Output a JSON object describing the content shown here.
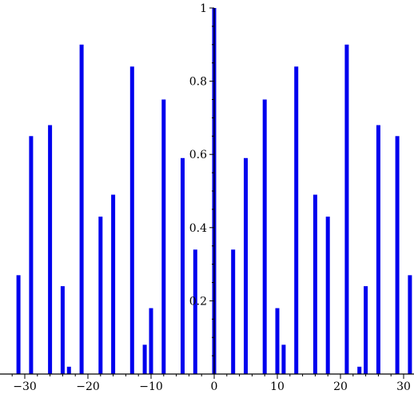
{
  "chart_data": {
    "type": "bar",
    "x": [
      -31,
      -29,
      -26,
      -24,
      -23,
      -21,
      -18,
      -16,
      -13,
      -11,
      -10,
      -8,
      -5,
      -3,
      0,
      3,
      5,
      8,
      10,
      11,
      13,
      16,
      18,
      21,
      23,
      24,
      26,
      29,
      31
    ],
    "values": [
      0.27,
      0.65,
      0.68,
      0.24,
      0.02,
      0.9,
      0.43,
      0.49,
      0.84,
      0.08,
      0.18,
      0.75,
      0.59,
      0.34,
      1.0,
      0.34,
      0.59,
      0.75,
      0.18,
      0.08,
      0.84,
      0.49,
      0.43,
      0.9,
      0.02,
      0.24,
      0.68,
      0.65,
      0.27
    ],
    "xlim": [
      -32,
      31
    ],
    "ylim": [
      0,
      1
    ],
    "x_ticks": [
      -30,
      -20,
      -10,
      0,
      10,
      20,
      30
    ],
    "x_tick_labels": [
      "−30",
      "−20",
      "−10",
      "0",
      "10",
      "20",
      "30"
    ],
    "y_ticks": [
      0.2,
      0.4,
      0.6,
      0.8,
      1
    ],
    "y_tick_labels": [
      "0.2",
      "0.4",
      "0.6",
      "0.8",
      "1"
    ],
    "bar_color": "#0000ee",
    "axis_color": "#000000",
    "grid": false,
    "title": "",
    "xlabel": "",
    "ylabel": ""
  }
}
